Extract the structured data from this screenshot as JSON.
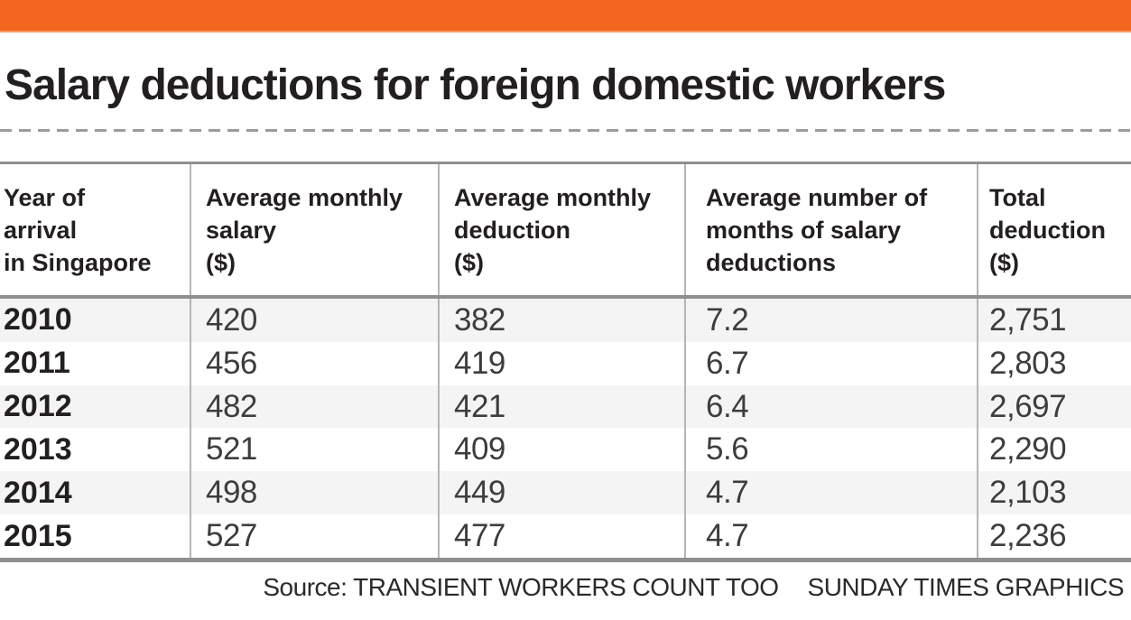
{
  "title": "Salary deductions for foreign domestic workers",
  "colors": {
    "accent_orange": "#f2661f",
    "rule_gray": "#8f8f8f",
    "divider_gray": "#b5b5b5",
    "row_stripe": "#f3f4f3",
    "text_black": "#231f20"
  },
  "table": {
    "headers": [
      "Year of\narrival\nin Singapore",
      "Average monthly\nsalary\n($)",
      "Average monthly\ndeduction\n($)",
      "Average number of\nmonths of salary\ndeductions",
      "Total\ndeduction\n($)"
    ],
    "rows": [
      {
        "year": "2010",
        "salary": "420",
        "deduction": "382",
        "months": "7.2",
        "total": "2,751"
      },
      {
        "year": "2011",
        "salary": "456",
        "deduction": "419",
        "months": "6.7",
        "total": "2,803"
      },
      {
        "year": "2012",
        "salary": "482",
        "deduction": "421",
        "months": "6.4",
        "total": "2,697"
      },
      {
        "year": "2013",
        "salary": "521",
        "deduction": "409",
        "months": "5.6",
        "total": "2,290"
      },
      {
        "year": "2014",
        "salary": "498",
        "deduction": "449",
        "months": "4.7",
        "total": "2,103"
      },
      {
        "year": "2015",
        "salary": "527",
        "deduction": "477",
        "months": "4.7",
        "total": "2,236"
      }
    ]
  },
  "footer": {
    "source": "Source: TRANSIENT WORKERS COUNT TOO",
    "credit": "SUNDAY TIMES GRAPHICS"
  },
  "chart_data": {
    "type": "table",
    "title": "Salary deductions for foreign domestic workers",
    "columns": [
      "Year of arrival in Singapore",
      "Average monthly salary ($)",
      "Average monthly deduction ($)",
      "Average number of months of salary deductions",
      "Total deduction ($)"
    ],
    "rows": [
      [
        2010,
        420,
        382,
        7.2,
        2751
      ],
      [
        2011,
        456,
        419,
        6.7,
        2803
      ],
      [
        2012,
        482,
        421,
        6.4,
        2697
      ],
      [
        2013,
        521,
        409,
        5.6,
        2290
      ],
      [
        2014,
        498,
        449,
        4.7,
        2103
      ],
      [
        2015,
        527,
        477,
        4.7,
        2236
      ]
    ],
    "source": "TRANSIENT WORKERS COUNT TOO",
    "credit": "SUNDAY TIMES GRAPHICS"
  }
}
